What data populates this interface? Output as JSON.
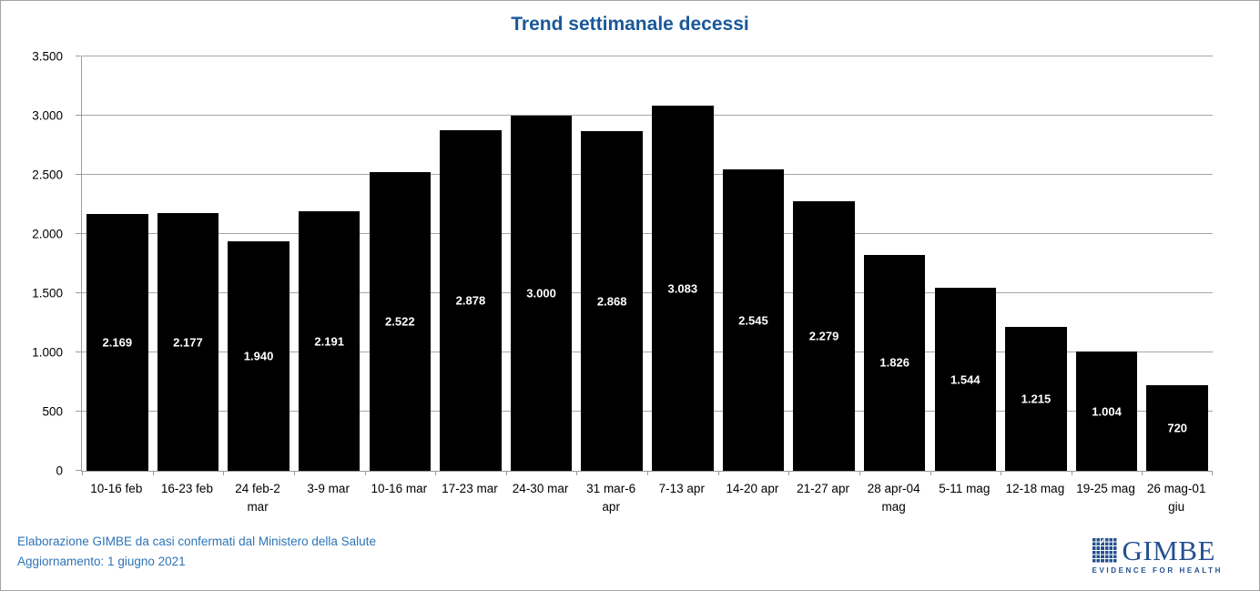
{
  "page": {
    "title": "Trend settimanale decessi"
  },
  "chart_data": {
    "type": "bar",
    "title": "Trend settimanale decessi",
    "categories": [
      "10-16 feb",
      "16-23 feb",
      "24 feb-2 mar",
      "3-9 mar",
      "10-16 mar",
      "17-23 mar",
      "24-30 mar",
      "31 mar-6 apr",
      "7-13 apr",
      "14-20 apr",
      "21-27 apr",
      "28 apr-04 mag",
      "5-11 mag",
      "12-18 mag",
      "19-25 mag",
      "26 mag-01 giu"
    ],
    "values": [
      2169,
      2177,
      1940,
      2191,
      2522,
      2878,
      3000,
      2868,
      3083,
      2545,
      2279,
      1826,
      1544,
      1215,
      1004,
      720
    ],
    "value_labels": [
      "2.169",
      "2.177",
      "1.940",
      "2.191",
      "2.522",
      "2.878",
      "3.000",
      "2.868",
      "3.083",
      "2.545",
      "2.279",
      "1.826",
      "1.544",
      "1.215",
      "1.004",
      "720"
    ],
    "xlabel": "",
    "ylabel": "",
    "ylim": [
      0,
      3500
    ],
    "ytick_step": 500,
    "ytick_labels": [
      "0",
      "500",
      "1.000",
      "1.500",
      "2.000",
      "2.500",
      "3.000",
      "3.500"
    ],
    "grid": true,
    "legend": "none",
    "bar_color": "#000000",
    "data_label_color": "#FFFFFF",
    "data_label_position": "inside-center"
  },
  "footer": {
    "source_line": "Elaborazione GIMBE da casi confermati dal Ministero della Salute",
    "update_line": "Aggiornamento: 1 giugno 2021"
  },
  "logo": {
    "name": "GIMBE",
    "tagline": "EVIDENCE FOR HEALTH",
    "icon": "gimbe-grid-check-icon"
  },
  "colors": {
    "title_blue": "#1A5899",
    "footer_blue": "#2E74B5",
    "logo_blue": "#24508F",
    "bar": "#000000",
    "gridline": "#A6A6A6",
    "axis": "#9B9B9B",
    "background": "#FFFFFF"
  }
}
